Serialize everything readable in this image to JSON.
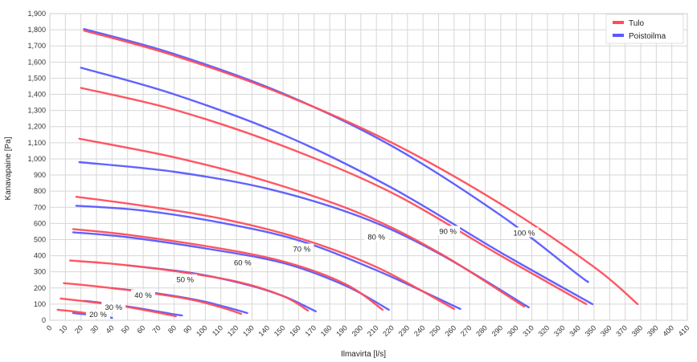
{
  "chart_data": {
    "type": "line",
    "xlabel": "Ilmavirta [l/s]",
    "ylabel": "Kanavapaine [Pa]",
    "xlim": [
      0,
      410
    ],
    "ylim": [
      0,
      1900
    ],
    "x_ticks": [
      0,
      10,
      20,
      30,
      40,
      50,
      60,
      70,
      80,
      90,
      100,
      110,
      120,
      130,
      140,
      150,
      160,
      170,
      180,
      190,
      200,
      210,
      220,
      230,
      240,
      250,
      260,
      270,
      280,
      290,
      300,
      310,
      320,
      330,
      340,
      350,
      360,
      370,
      380,
      390,
      400,
      410
    ],
    "y_ticks": [
      0,
      100,
      200,
      300,
      400,
      500,
      600,
      700,
      800,
      900,
      1000,
      1100,
      1200,
      1300,
      1400,
      1500,
      1600,
      1700,
      1800,
      1900
    ],
    "y_tick_labels": [
      "0",
      "100",
      "200",
      "300",
      "400",
      "500",
      "600",
      "700",
      "800",
      "900",
      "1,000",
      "1,100",
      "1,200",
      "1,300",
      "1,400",
      "1,500",
      "1,600",
      "1,700",
      "1,800",
      "1,900"
    ],
    "grid": true,
    "legend_position": "top-right",
    "series": [
      {
        "name": "Tulo",
        "color": "#ff4d5a"
      },
      {
        "name": "Poistoilma",
        "color": "#5a5aff"
      }
    ],
    "curves": [
      {
        "label": "20 %",
        "label_at": [
          31,
          34
        ],
        "tulo": [
          [
            5,
            65
          ],
          [
            15,
            55
          ],
          [
            25,
            42
          ],
          [
            36,
            25
          ]
        ],
        "poisto": [
          [
            15,
            45
          ],
          [
            25,
            35
          ],
          [
            35,
            22
          ],
          [
            40,
            15
          ]
        ]
      },
      {
        "label": "30 %",
        "label_at": [
          41,
          80
        ],
        "tulo": [
          [
            7,
            135
          ],
          [
            25,
            115
          ],
          [
            45,
            90
          ],
          [
            60,
            65
          ],
          [
            81,
            25
          ]
        ],
        "poisto": [
          [
            22,
            120
          ],
          [
            40,
            100
          ],
          [
            60,
            70
          ],
          [
            78,
            40
          ],
          [
            85,
            30
          ]
        ]
      },
      {
        "label": "40 %",
        "label_at": [
          60,
          155
        ],
        "tulo": [
          [
            9,
            230
          ],
          [
            30,
            210
          ],
          [
            60,
            175
          ],
          [
            90,
            130
          ],
          [
            110,
            80
          ],
          [
            123,
            40
          ]
        ],
        "poisto": [
          [
            40,
            200
          ],
          [
            70,
            165
          ],
          [
            95,
            125
          ],
          [
            112,
            85
          ],
          [
            127,
            45
          ]
        ]
      },
      {
        "label": "50 %",
        "label_at": [
          87,
          250
        ],
        "tulo": [
          [
            13,
            370
          ],
          [
            40,
            350
          ],
          [
            80,
            305
          ],
          [
            120,
            240
          ],
          [
            150,
            150
          ],
          [
            166,
            60
          ]
        ],
        "poisto": [
          [
            50,
            340
          ],
          [
            90,
            295
          ],
          [
            125,
            225
          ],
          [
            150,
            150
          ],
          [
            171,
            55
          ]
        ]
      },
      {
        "label": "60 %",
        "label_at": [
          124,
          355
        ],
        "tulo": [
          [
            15,
            565
          ],
          [
            50,
            530
          ],
          [
            100,
            460
          ],
          [
            150,
            365
          ],
          [
            190,
            225
          ],
          [
            214,
            65
          ]
        ],
        "poisto": [
          [
            15,
            545
          ],
          [
            50,
            515
          ],
          [
            100,
            445
          ],
          [
            150,
            355
          ],
          [
            190,
            215
          ],
          [
            218,
            65
          ]
        ]
      },
      {
        "label": "70 %",
        "label_at": [
          162,
          440
        ],
        "tulo": [
          [
            17,
            765
          ],
          [
            60,
            710
          ],
          [
            110,
            630
          ],
          [
            160,
            510
          ],
          [
            210,
            330
          ],
          [
            260,
            70
          ]
        ],
        "poisto": [
          [
            17,
            710
          ],
          [
            60,
            680
          ],
          [
            110,
            605
          ],
          [
            160,
            495
          ],
          [
            210,
            310
          ],
          [
            264,
            70
          ]
        ]
      },
      {
        "label": "80 %",
        "label_at": [
          210,
          515
        ],
        "tulo": [
          [
            19,
            1125
          ],
          [
            80,
            1010
          ],
          [
            140,
            860
          ],
          [
            200,
            660
          ],
          [
            250,
            420
          ],
          [
            305,
            85
          ]
        ],
        "poisto": [
          [
            19,
            980
          ],
          [
            80,
            920
          ],
          [
            140,
            815
          ],
          [
            200,
            640
          ],
          [
            250,
            415
          ],
          [
            308,
            80
          ]
        ]
      },
      {
        "label": "90 %",
        "label_at": [
          256,
          550
        ],
        "tulo": [
          [
            20,
            1440
          ],
          [
            80,
            1305
          ],
          [
            150,
            1080
          ],
          [
            220,
            790
          ],
          [
            290,
            400
          ],
          [
            345,
            100
          ]
        ],
        "poisto": [
          [
            20,
            1565
          ],
          [
            80,
            1400
          ],
          [
            150,
            1150
          ],
          [
            220,
            820
          ],
          [
            290,
            420
          ],
          [
            349,
            100
          ]
        ]
      },
      {
        "label": "100 %",
        "label_at": [
          305,
          540
        ],
        "tulo": [
          [
            22,
            1795
          ],
          [
            80,
            1640
          ],
          [
            150,
            1400
          ],
          [
            220,
            1100
          ],
          [
            290,
            720
          ],
          [
            350,
            330
          ],
          [
            378,
            100
          ]
        ],
        "poisto": [
          [
            22,
            1805
          ],
          [
            80,
            1650
          ],
          [
            150,
            1405
          ],
          [
            220,
            1080
          ],
          [
            290,
            650
          ],
          [
            340,
            280
          ],
          [
            346,
            240
          ]
        ]
      }
    ]
  }
}
